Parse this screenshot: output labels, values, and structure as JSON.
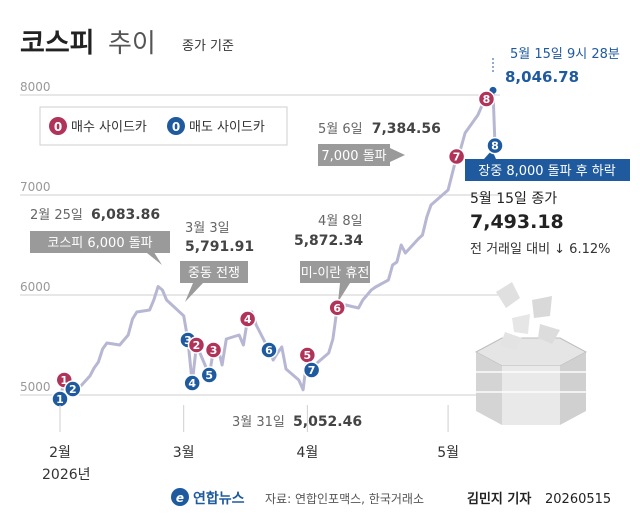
{
  "header": {
    "title": "코스피",
    "title_suffix": "추이",
    "subtitle": "종가 기준"
  },
  "legend": {
    "buy_label": "매수 사이드카",
    "sell_label": "매도 사이드카",
    "marker_text": "0",
    "buy_color": "#b0345a",
    "sell_color": "#1f5a9e"
  },
  "colors": {
    "line": "#b7b7d4",
    "grid": "#cfcfcf",
    "label_box": "#9a9a9a",
    "highlight_box": "#1f5a9e",
    "highlight_text": "#1f5a9e"
  },
  "annotations": {
    "intraday_time": "5월 15일 9시 28분",
    "intraday_value": "8,046.78",
    "close_label": "5월 15일 종가",
    "close_value": "7,493.18",
    "change_text": "전 거래일 대비 ↓ 6.12%",
    "box_plunge": "장중 8,000 돌파 후 하락",
    "may6_label": "5월 6일",
    "may6_value": "7,384.56",
    "box_7000": "7,000 돌파",
    "feb25_label": "2월 25일",
    "feb25_value": "6,083.86",
    "box_6000": "코스피 6,000 돌파",
    "mar3_label": "3월 3일",
    "mar3_value": "5,791.91",
    "box_mideast": "중동 전쟁",
    "apr8_label": "4월 8일",
    "apr8_value": "5,872.34",
    "box_truce": "미-이란 휴전",
    "mar31_label": "3월 31일",
    "mar31_value": "5,052.46"
  },
  "footer": {
    "agency": "연합뉴스",
    "source": "자료: 연합인포맥스, 한국거래소",
    "byline": "김민지 기자",
    "date_code": "20260515"
  },
  "chart_data": {
    "type": "line",
    "title": "코스피 추이",
    "subtitle": "종가 기준",
    "y_ticks": [
      "8000",
      "7000",
      "6000",
      "5000"
    ],
    "y_tick_values": [
      8000,
      7000,
      6000,
      5000
    ],
    "ylim": [
      4900,
      8200
    ],
    "x_ticks": [
      "2월",
      "3월",
      "4월",
      "5월"
    ],
    "x_tick_dates": [
      "2026-02-02",
      "2026-03-03",
      "2026-04-01",
      "2026-05-04"
    ],
    "x_year": "2026년",
    "xlim": [
      "2026-02-02",
      "2026-05-15"
    ],
    "grid": true,
    "series": [
      {
        "values": [
          [
            "2026-02-02",
            4960
          ],
          [
            "2026-02-03",
            5150
          ],
          [
            "2026-02-04",
            5210
          ],
          [
            "2026-02-05",
            5060
          ],
          [
            "2026-02-06",
            5050
          ],
          [
            "2026-02-09",
            5190
          ],
          [
            "2026-02-10",
            5270
          ],
          [
            "2026-02-11",
            5330
          ],
          [
            "2026-02-12",
            5460
          ],
          [
            "2026-02-13",
            5520
          ],
          [
            "2026-02-16",
            5500
          ],
          [
            "2026-02-18",
            5600
          ],
          [
            "2026-02-19",
            5760
          ],
          [
            "2026-02-20",
            5830
          ],
          [
            "2026-02-23",
            5850
          ],
          [
            "2026-02-24",
            5950
          ],
          [
            "2026-02-25",
            6083.86
          ],
          [
            "2026-02-26",
            6050
          ],
          [
            "2026-02-27",
            5950
          ],
          [
            "2026-03-03",
            5791.91
          ],
          [
            "2026-03-04",
            5550
          ],
          [
            "2026-03-05",
            5120
          ],
          [
            "2026-03-06",
            5500
          ],
          [
            "2026-03-09",
            5200
          ],
          [
            "2026-03-10",
            5450
          ],
          [
            "2026-03-11",
            5480
          ],
          [
            "2026-03-12",
            5300
          ],
          [
            "2026-03-13",
            5560
          ],
          [
            "2026-03-16",
            5600
          ],
          [
            "2026-03-17",
            5500
          ],
          [
            "2026-03-18",
            5760
          ],
          [
            "2026-03-19",
            5830
          ],
          [
            "2026-03-20",
            5700
          ],
          [
            "2026-03-23",
            5450
          ],
          [
            "2026-03-24",
            5350
          ],
          [
            "2026-03-25",
            5420
          ],
          [
            "2026-03-26",
            5480
          ],
          [
            "2026-03-27",
            5260
          ],
          [
            "2026-03-30",
            5150
          ],
          [
            "2026-03-31",
            5052.46
          ],
          [
            "2026-04-01",
            5400
          ],
          [
            "2026-04-02",
            5250
          ],
          [
            "2026-04-03",
            5310
          ],
          [
            "2026-04-06",
            5420
          ],
          [
            "2026-04-07",
            5560
          ],
          [
            "2026-04-08",
            5872.34
          ],
          [
            "2026-04-09",
            5820
          ],
          [
            "2026-04-10",
            5900
          ],
          [
            "2026-04-13",
            5870
          ],
          [
            "2026-04-14",
            5950
          ],
          [
            "2026-04-15",
            6000
          ],
          [
            "2026-04-16",
            6050
          ],
          [
            "2026-04-17",
            6080
          ],
          [
            "2026-04-20",
            6150
          ],
          [
            "2026-04-21",
            6300
          ],
          [
            "2026-04-22",
            6330
          ],
          [
            "2026-04-23",
            6500
          ],
          [
            "2026-04-24",
            6420
          ],
          [
            "2026-04-27",
            6560
          ],
          [
            "2026-04-28",
            6600
          ],
          [
            "2026-04-29",
            6780
          ],
          [
            "2026-04-30",
            6900
          ],
          [
            "2026-05-04",
            7050
          ],
          [
            "2026-05-06",
            7384.56
          ],
          [
            "2026-05-07",
            7470
          ],
          [
            "2026-05-08",
            7620
          ],
          [
            "2026-05-11",
            7800
          ],
          [
            "2026-05-12",
            7900
          ],
          [
            "2026-05-13",
            7960
          ],
          [
            "2026-05-14",
            7980
          ],
          [
            "2026-05-15",
            7493.18
          ]
        ]
      }
    ],
    "intraday_high": {
      "date": "2026-05-15",
      "value": 8046.78
    },
    "sidecars": [
      {
        "n": "1",
        "date": "2026-02-02",
        "value": 4960,
        "type": "sell"
      },
      {
        "n": "1",
        "date": "2026-02-03",
        "value": 5150,
        "type": "buy"
      },
      {
        "n": "2",
        "date": "2026-02-05",
        "value": 5060,
        "type": "sell"
      },
      {
        "n": "3",
        "date": "2026-03-04",
        "value": 5550,
        "type": "sell"
      },
      {
        "n": "4",
        "date": "2026-03-05",
        "value": 5120,
        "type": "sell"
      },
      {
        "n": "2",
        "date": "2026-03-06",
        "value": 5500,
        "type": "buy"
      },
      {
        "n": "5",
        "date": "2026-03-09",
        "value": 5200,
        "type": "sell"
      },
      {
        "n": "3",
        "date": "2026-03-10",
        "value": 5450,
        "type": "buy"
      },
      {
        "n": "4",
        "date": "2026-03-18",
        "value": 5760,
        "type": "buy"
      },
      {
        "n": "6",
        "date": "2026-03-23",
        "value": 5450,
        "type": "sell"
      },
      {
        "n": "5",
        "date": "2026-04-01",
        "value": 5400,
        "type": "buy"
      },
      {
        "n": "7",
        "date": "2026-04-02",
        "value": 5250,
        "type": "sell"
      },
      {
        "n": "6",
        "date": "2026-04-08",
        "value": 5872.34,
        "type": "buy"
      },
      {
        "n": "7",
        "date": "2026-05-06",
        "value": 7384.56,
        "type": "buy"
      },
      {
        "n": "8",
        "date": "2026-05-13",
        "value": 7960,
        "type": "buy"
      },
      {
        "n": "8",
        "date": "2026-05-15",
        "value": 7493.18,
        "type": "sell"
      }
    ]
  }
}
